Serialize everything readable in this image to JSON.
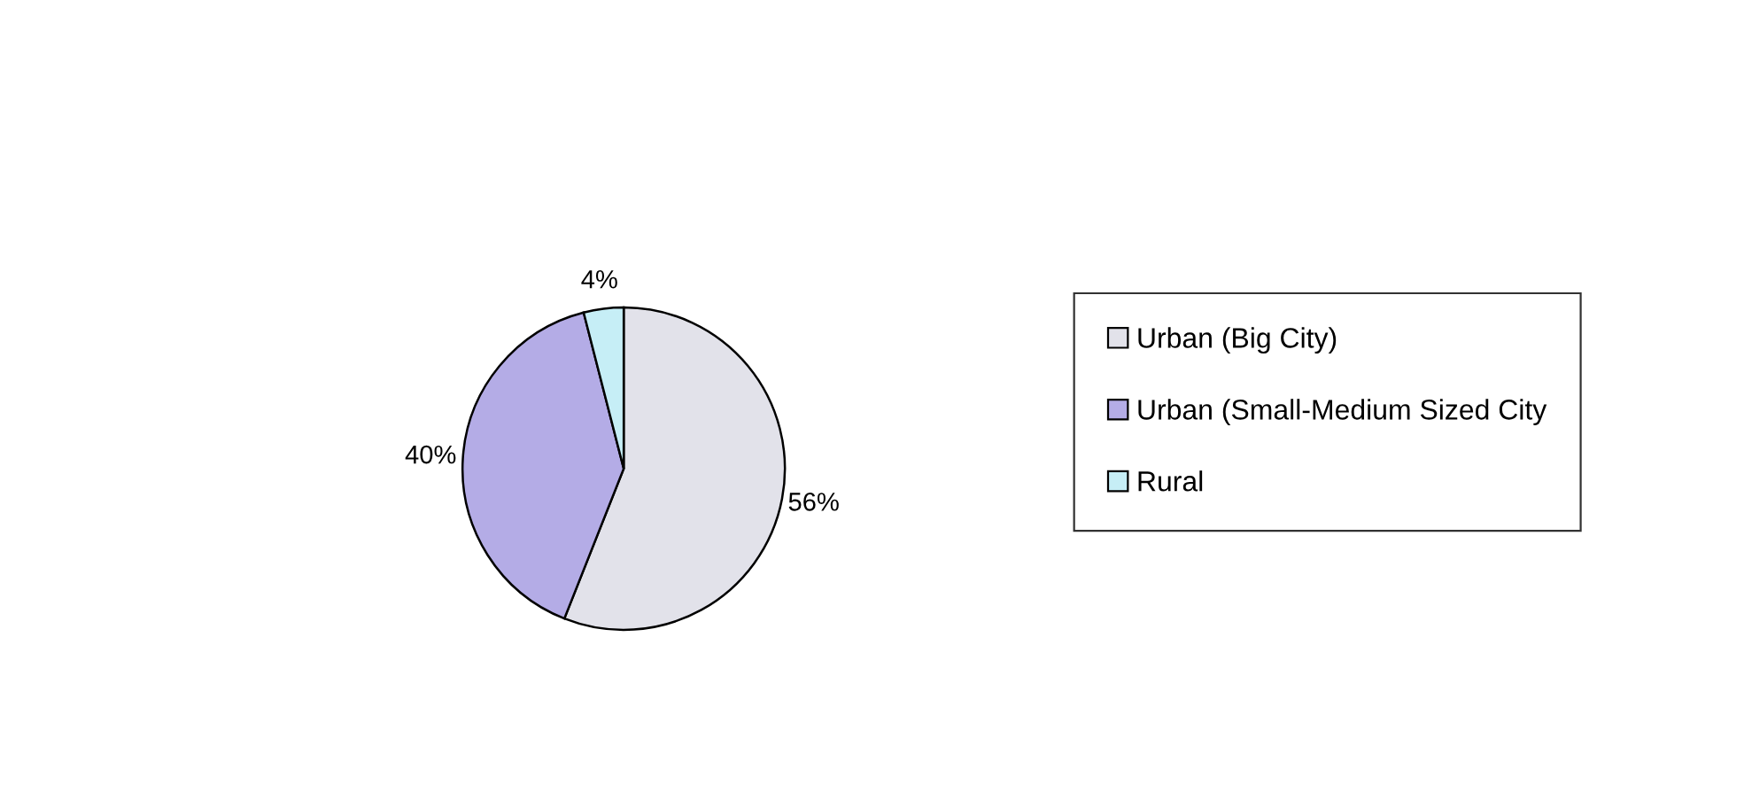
{
  "chart_data": {
    "type": "pie",
    "categories": [
      "Urban (Big City)",
      "Urban (Small-Medium Sized City",
      "Rural"
    ],
    "values": [
      56,
      40,
      4
    ],
    "value_labels": [
      "56%",
      "40%",
      "4%"
    ],
    "colors": [
      "#e2e2ea",
      "#b4ace6",
      "#c6eef6"
    ],
    "legend": "right"
  }
}
